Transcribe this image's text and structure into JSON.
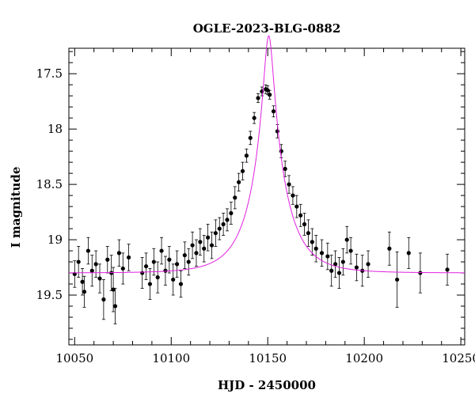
{
  "chart_data": {
    "type": "scatter",
    "title": "OGLE-2023-BLG-0882",
    "xlabel": "HJD - 2450000",
    "ylabel": "I magnitude",
    "xlim": [
      10047,
      10252
    ],
    "ylim": [
      19.95,
      17.27
    ],
    "y_inverted": true,
    "xticks": [
      10050,
      10100,
      10150,
      10200,
      10250
    ],
    "xtick_labels": [
      "10050",
      "10100",
      "10150",
      "10200",
      "10250"
    ],
    "yticks": [
      17.5,
      18,
      18.5,
      19,
      19.5
    ],
    "ytick_labels": [
      "17.5",
      "18",
      "18.5",
      "19",
      "19.5"
    ],
    "grid": false,
    "legend": "none",
    "series": [
      {
        "kind": "points_with_errorbars",
        "color": "#000000",
        "points": [
          [
            10050,
            19.31,
            0.12
          ],
          [
            10052,
            19.2,
            0.14
          ],
          [
            10054,
            19.38,
            0.12
          ],
          [
            10055,
            19.47,
            0.14
          ],
          [
            10057,
            19.1,
            0.12
          ],
          [
            10059,
            19.28,
            0.14
          ],
          [
            10061,
            19.22,
            0.12
          ],
          [
            10063,
            19.35,
            0.13
          ],
          [
            10065,
            19.54,
            0.18
          ],
          [
            10067,
            19.18,
            0.12
          ],
          [
            10069,
            19.3,
            0.16
          ],
          [
            10070,
            19.45,
            0.2
          ],
          [
            10071,
            19.6,
            0.16
          ],
          [
            10073,
            19.12,
            0.12
          ],
          [
            10075,
            19.26,
            0.14
          ],
          [
            10078,
            19.16,
            0.12
          ],
          [
            10085,
            19.3,
            0.14
          ],
          [
            10087,
            19.24,
            0.12
          ],
          [
            10089,
            19.4,
            0.14
          ],
          [
            10091,
            19.2,
            0.12
          ],
          [
            10093,
            19.34,
            0.14
          ],
          [
            10095,
            19.1,
            0.12
          ],
          [
            10097,
            19.28,
            0.13
          ],
          [
            10099,
            19.18,
            0.12
          ],
          [
            10101,
            19.36,
            0.14
          ],
          [
            10103,
            19.22,
            0.12
          ],
          [
            10105,
            19.4,
            0.12
          ],
          [
            10107,
            19.14,
            0.12
          ],
          [
            10109,
            19.2,
            0.12
          ],
          [
            10111,
            19.05,
            0.12
          ],
          [
            10113,
            19.12,
            0.12
          ],
          [
            10115,
            19.02,
            0.12
          ],
          [
            10117,
            19.08,
            0.12
          ],
          [
            10119,
            18.98,
            0.12
          ],
          [
            10121,
            19.05,
            0.12
          ],
          [
            10123,
            18.94,
            0.12
          ],
          [
            10125,
            18.9,
            0.1
          ],
          [
            10127,
            18.86,
            0.1
          ],
          [
            10129,
            18.82,
            0.1
          ],
          [
            10131,
            18.76,
            0.1
          ],
          [
            10133,
            18.62,
            0.1
          ],
          [
            10135,
            18.48,
            0.08
          ],
          [
            10137,
            18.38,
            0.08
          ],
          [
            10139,
            18.24,
            0.06
          ],
          [
            10141,
            18.08,
            0.06
          ],
          [
            10143,
            17.9,
            0.05
          ],
          [
            10145,
            17.72,
            0.04
          ],
          [
            10147,
            17.66,
            0.04
          ],
          [
            10149,
            17.64,
            0.04
          ],
          [
            10150,
            17.65,
            0.04
          ],
          [
            10151,
            17.69,
            0.04
          ],
          [
            10153,
            17.84,
            0.05
          ],
          [
            10155,
            18.02,
            0.06
          ],
          [
            10157,
            18.2,
            0.06
          ],
          [
            10159,
            18.36,
            0.07
          ],
          [
            10161,
            18.5,
            0.08
          ],
          [
            10163,
            18.6,
            0.08
          ],
          [
            10165,
            18.7,
            0.1
          ],
          [
            10167,
            18.78,
            0.1
          ],
          [
            10169,
            18.86,
            0.1
          ],
          [
            10171,
            18.94,
            0.12
          ],
          [
            10173,
            19.02,
            0.12
          ],
          [
            10175,
            19.08,
            0.12
          ],
          [
            10178,
            19.12,
            0.12
          ],
          [
            10181,
            19.15,
            0.12
          ],
          [
            10183,
            19.28,
            0.14
          ],
          [
            10185,
            19.22,
            0.12
          ],
          [
            10187,
            19.3,
            0.14
          ],
          [
            10189,
            19.2,
            0.12
          ],
          [
            10191,
            19.0,
            0.12
          ],
          [
            10193,
            19.1,
            0.12
          ],
          [
            10196,
            19.25,
            0.12
          ],
          [
            10199,
            19.28,
            0.14
          ],
          [
            10202,
            19.22,
            0.12
          ],
          [
            10213,
            19.08,
            0.15
          ],
          [
            10217,
            19.36,
            0.25
          ],
          [
            10223,
            19.12,
            0.14
          ],
          [
            10229,
            19.3,
            0.18
          ],
          [
            10243,
            19.27,
            0.14
          ]
        ]
      },
      {
        "kind": "model_curve",
        "color": "#e020e0",
        "model": {
          "t0": 10150.5,
          "u0": 0.14,
          "tE": 17,
          "baseline_mag": 19.3
        }
      }
    ]
  }
}
